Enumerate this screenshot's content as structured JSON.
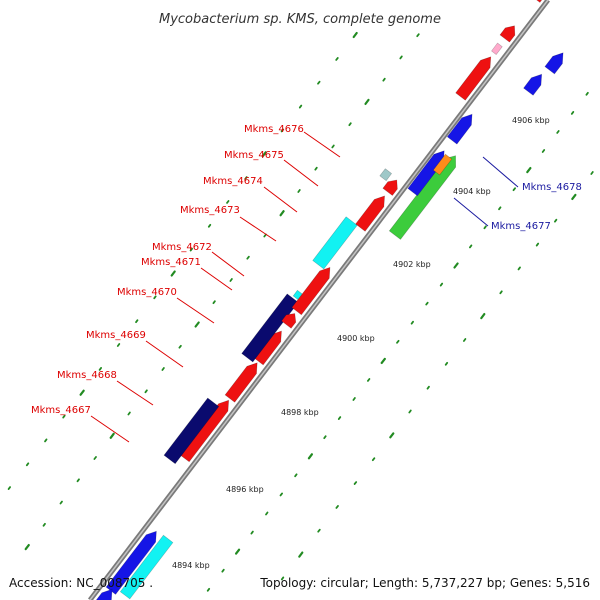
{
  "title": "Mycobacterium sp. KMS, complete genome",
  "footer": {
    "accession": "Accession: NC_008705 .",
    "topology": "Topology: circular; Length: 5,737,227 bp; Genes: 5,516"
  },
  "colors": {
    "background": "#ffffff",
    "backbone": "#8c8c8c",
    "tick": "#228b22",
    "label_red": "#dd0000",
    "label_blue": "#1a1aa0"
  },
  "kbp_labels": [
    "4894 kbp",
    "4896 kbp",
    "4898 kbp",
    "4900 kbp",
    "4902 kbp",
    "4904 kbp",
    "4906 kbp"
  ],
  "gene_labels_left": [
    "Mkms_4676",
    "Mkms_4675",
    "Mkms_4674",
    "Mkms_4673",
    "Mkms_4672",
    "Mkms_4671",
    "Mkms_4670",
    "Mkms_4669",
    "Mkms_4668",
    "Mkms_4667"
  ],
  "gene_labels_right": [
    "Mkms_4678",
    "Mkms_4677"
  ]
}
